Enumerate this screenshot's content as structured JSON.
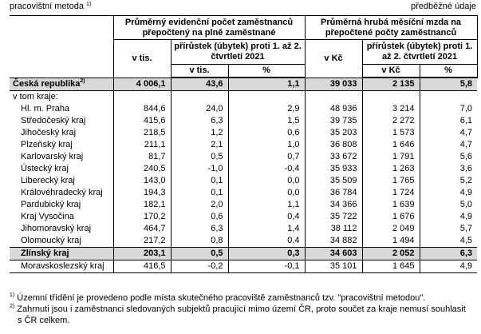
{
  "header": {
    "method": "pracovištní metoda",
    "method_note": "1)",
    "status": "předběžné údaje"
  },
  "table": {
    "group_headers": [
      "Průměrný evidenční počet zaměstnanců přepočtený na plně zaměstnané",
      "Průměrná hrubá měsíční mzda na přepočtené počty zaměstnanců"
    ],
    "sub_headers": [
      "v tis.",
      "přírůstek (úbytek) proti 1. až 2. čtvrtletí 2021",
      "v Kč",
      "přírůstek (úbytek) proti 1. až 2. čtvrtletí 2021"
    ],
    "unit_headers": [
      "v tis.",
      "%",
      "v Kč",
      "%"
    ],
    "rows": [
      {
        "cells": [
          "Česká republika",
          "4 006,1",
          "43,6",
          "1,1",
          "39 033",
          "2 135",
          "5,8"
        ],
        "note": "2)",
        "highlight": true
      },
      {
        "cells": [
          "v tom kraje:",
          "",
          "",
          "",
          "",
          "",
          ""
        ]
      },
      {
        "cells": [
          "Hl. m. Praha",
          "844,6",
          "24,0",
          "2,9",
          "48 936",
          "3 214",
          "7,0"
        ],
        "indent": true
      },
      {
        "cells": [
          "Středočeský kraj",
          "415,6",
          "6,3",
          "1,5",
          "39 735",
          "2 272",
          "6,1"
        ],
        "indent": true
      },
      {
        "cells": [
          "Jihočeský kraj",
          "218,5",
          "1,2",
          "0,6",
          "35 203",
          "1 573",
          "4,7"
        ],
        "indent": true
      },
      {
        "cells": [
          "Plzeňský kraj",
          "211,1",
          "2,1",
          "1,0",
          "36 808",
          "1 646",
          "4,7"
        ],
        "indent": true
      },
      {
        "cells": [
          "Karlovarský kraj",
          "81,7",
          "0,5",
          "0,7",
          "33 672",
          "1 791",
          "5,6"
        ],
        "indent": true
      },
      {
        "cells": [
          "Ústecký kraj",
          "240,5",
          "-1,0",
          "-0,4",
          "35 933",
          "1 263",
          "3,6"
        ],
        "indent": true
      },
      {
        "cells": [
          "Liberecký kraj",
          "143,0",
          "0,1",
          "0,0",
          "35 509",
          "1 765",
          "5,2"
        ],
        "indent": true
      },
      {
        "cells": [
          "Královéhradecký kraj",
          "194,3",
          "0,1",
          "0,0",
          "36 784",
          "1 724",
          "4,9"
        ],
        "indent": true
      },
      {
        "cells": [
          "Pardubický kraj",
          "182,1",
          "2,0",
          "1,1",
          "34 366",
          "1 639",
          "5,0"
        ],
        "indent": true
      },
      {
        "cells": [
          "Kraj Vysočina",
          "170,2",
          "0,6",
          "0,4",
          "35 722",
          "1 676",
          "4,9"
        ],
        "indent": true
      },
      {
        "cells": [
          "Jihomoravský kraj",
          "464,7",
          "6,3",
          "1,4",
          "38 112",
          "2 049",
          "5,7"
        ],
        "indent": true
      },
      {
        "cells": [
          "Olomoucký kraj",
          "217,2",
          "0,8",
          "0,4",
          "34 882",
          "1 494",
          "4,5"
        ],
        "indent": true
      },
      {
        "cells": [
          "Zlínský kraj",
          "203,1",
          "0,5",
          "0,3",
          "34 603",
          "2 052",
          "6,3"
        ],
        "indent": true,
        "highlight": true
      },
      {
        "cells": [
          "Moravskoslezský kraj",
          "416,5",
          "-0,2",
          "-0,1",
          "35 101",
          "1 645",
          "4,9"
        ],
        "indent": true
      }
    ]
  },
  "footnotes": [
    {
      "mark": "1)",
      "text": "Územní třídění je provedeno podle místa skutečného pracoviště zaměstnanců tzv. \"pracovištní metodou\"."
    },
    {
      "mark": "2)",
      "text": "Zahrnuti jsou i zaměstnanci sledovaných subjektů pracující mimo území ČR, proto součet za kraje nemusí souhlasit s ČR celkem."
    }
  ]
}
